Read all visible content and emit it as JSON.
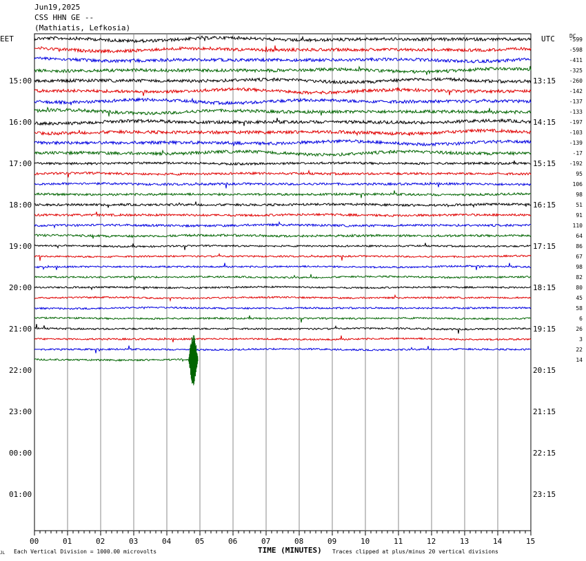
{
  "header": {
    "date": "Jun19,2025",
    "station": "CSS HHN GE --",
    "location": "(Mathiatis, Lefkosia)"
  },
  "left_tz": "EET",
  "right_tz": "UTC",
  "right_corner": "DC",
  "footer": {
    "xlabel": "TIME (MINUTES)",
    "division_note": "Each Vertical Division = 1000.00 microvolts",
    "clip_note": "Traces clipped at plus/minus 20 vertical divisions",
    "corner_mark": "JL"
  },
  "chart_data": {
    "type": "line",
    "title": "Jun19,2025 CSS HHN GE -- (Mathiatis, Lefkosia)",
    "xlabel": "TIME (MINUTES)",
    "xlim": [
      0,
      15
    ],
    "x_ticks": [
      "00",
      "01",
      "02",
      "03",
      "04",
      "05",
      "06",
      "07",
      "08",
      "09",
      "10",
      "11",
      "12",
      "13",
      "14",
      "15"
    ],
    "rows_total": 48,
    "rows_per_hour": 4,
    "left_hour_labels": [
      "15:00",
      "16:00",
      "17:00",
      "18:00",
      "19:00",
      "20:00",
      "21:00",
      "22:00",
      "23:00",
      "00:00",
      "01:00"
    ],
    "right_hour_labels": [
      "13:15",
      "14:15",
      "15:15",
      "16:15",
      "17:15",
      "18:15",
      "19:15",
      "20:15",
      "21:15",
      "22:15",
      "23:15"
    ],
    "trace_colors": [
      "#000000",
      "#e00000",
      "#0000e0",
      "#006400"
    ],
    "dc_offsets": [
      "-599",
      "-598",
      "-411",
      "-325",
      "-260",
      "-142",
      "-137",
      "-133",
      "-197",
      "-103",
      "-139",
      "-17",
      "-192",
      "95",
      "106",
      "98",
      "51",
      "91",
      "110",
      "64",
      "86",
      "67",
      "98",
      "82",
      "80",
      "45",
      "58",
      "6",
      "26",
      "3",
      "22",
      "14"
    ],
    "traces_recorded": 32,
    "last_trace_end_minute": 4.8,
    "events": [
      {
        "trace": 31,
        "minute": 4.8,
        "amplitude_divisions": 2.5
      }
    ]
  }
}
